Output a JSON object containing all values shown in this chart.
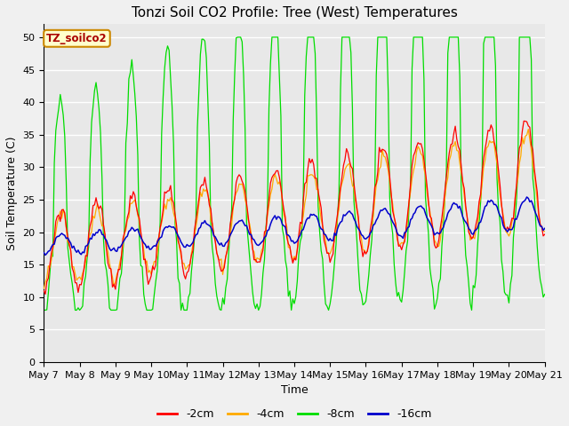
{
  "title": "Tonzi Soil CO2 Profile: Tree (West) Temperatures",
  "xlabel": "Time",
  "ylabel": "Soil Temperature (C)",
  "ylim": [
    0,
    52
  ],
  "yticks": [
    0,
    5,
    10,
    15,
    20,
    25,
    30,
    35,
    40,
    45,
    50
  ],
  "legend_label": "TZ_soilco2",
  "line_labels": [
    "-2cm",
    "-4cm",
    "-8cm",
    "-16cm"
  ],
  "line_colors": [
    "#ff0000",
    "#ffaa00",
    "#00dd00",
    "#0000cc"
  ],
  "fig_bg_color": "#f0f0f0",
  "plot_bg_color": "#e8e8e8",
  "xtick_labels": [
    "May 7",
    "May 8",
    "May 9",
    "May 10",
    "May 11",
    "May 12",
    "May 13",
    "May 14",
    "May 15",
    "May 16",
    "May 17",
    "May 18",
    "May 19",
    "May 20",
    "May 21"
  ],
  "n_points": 337
}
